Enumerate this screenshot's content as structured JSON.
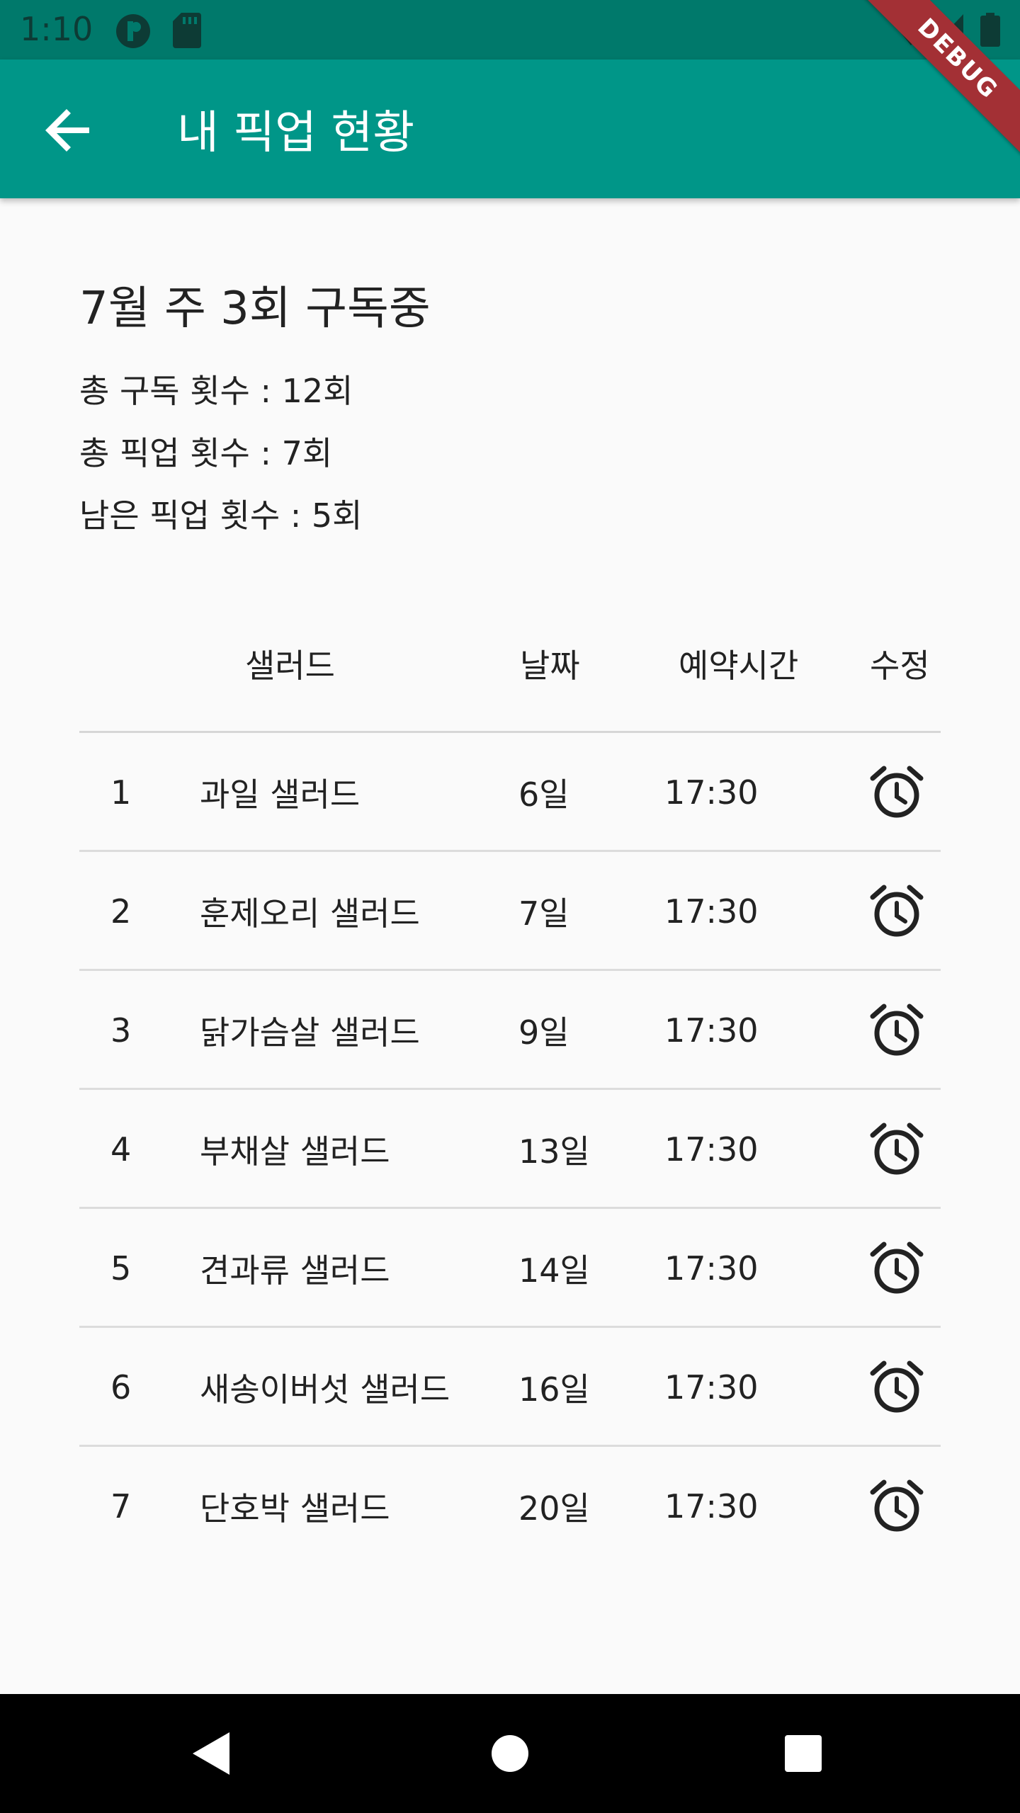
{
  "status_bar": {
    "time": "1:10",
    "icons": [
      "circle-status-icon",
      "sd-card-icon",
      "wifi-icon",
      "signal-icon",
      "battery-icon"
    ]
  },
  "debug_banner": "DEBUG",
  "app_bar": {
    "title": "내 픽업 현황",
    "back_icon": "arrow-back-icon",
    "color": "#009688",
    "status_color": "#00796b"
  },
  "summary": {
    "title": "7월 주 3회 구독중",
    "lines": [
      "총 구독 횟수 : 12회",
      "총 픽업 횟수 : 7회",
      "남은 픽업 횟수 : 5회"
    ]
  },
  "table": {
    "headers": {
      "salad": "샐러드",
      "date": "날짜",
      "time": "예약시간",
      "edit": "수정"
    },
    "edit_icon": "alarm-clock-icon",
    "rows": [
      {
        "no": "1",
        "salad": "과일 샐러드",
        "date": "6일",
        "time": "17:30"
      },
      {
        "no": "2",
        "salad": "훈제오리 샐러드",
        "date": "7일",
        "time": "17:30"
      },
      {
        "no": "3",
        "salad": "닭가슴살 샐러드",
        "date": "9일",
        "time": "17:30"
      },
      {
        "no": "4",
        "salad": "부채살 샐러드",
        "date": "13일",
        "time": "17:30"
      },
      {
        "no": "5",
        "salad": "견과류 샐러드",
        "date": "14일",
        "time": "17:30"
      },
      {
        "no": "6",
        "salad": "새송이버섯 샐러드",
        "date": "16일",
        "time": "17:30"
      },
      {
        "no": "7",
        "salad": "단호박 샐러드",
        "date": "20일",
        "time": "17:30"
      }
    ]
  },
  "nav_bar": {
    "icons": [
      "back-triangle-icon",
      "home-circle-icon",
      "recents-square-icon"
    ]
  }
}
